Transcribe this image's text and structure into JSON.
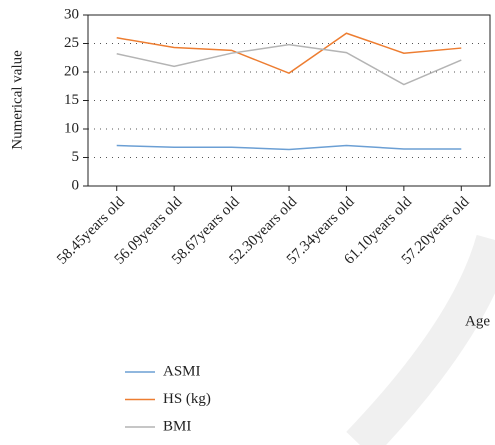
{
  "chart_data": {
    "type": "line",
    "categories": [
      "58.45years old",
      "56.09years old",
      "58.67years old",
      "52.30years old",
      "57.34years old",
      "61.10years old",
      "57.20years old"
    ],
    "series": [
      {
        "name": "ASMI",
        "color": "#6b9fd4",
        "values": [
          7.1,
          6.8,
          6.8,
          6.4,
          7.1,
          6.5,
          6.5
        ]
      },
      {
        "name": "HS (kg)",
        "color": "#ed7d31",
        "values": [
          26.0,
          24.3,
          23.8,
          19.8,
          26.8,
          23.3,
          24.2
        ]
      },
      {
        "name": "BMI",
        "color": "#b4b4b4",
        "values": [
          23.2,
          21.0,
          23.3,
          24.8,
          23.4,
          17.8,
          22.1
        ]
      }
    ],
    "ylabel": "Numerical value",
    "xlabel": "Age",
    "ylim": [
      0,
      30
    ],
    "yticks": [
      0,
      5,
      10,
      15,
      20,
      25,
      30
    ],
    "grid": true,
    "legend": "bottom-left"
  }
}
